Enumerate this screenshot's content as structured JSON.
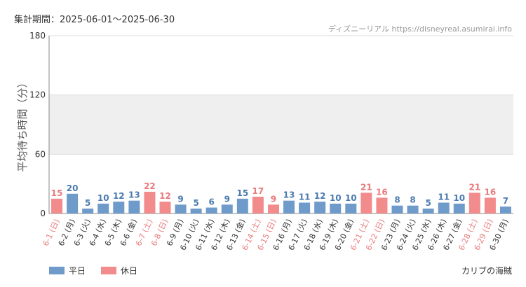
{
  "header": {
    "period_label": "集計期間：2025-06-01～2025-06-30",
    "source_label": "ディズニーリアル https://disneyreal.asumirai.info"
  },
  "footer": {
    "attraction_name": "カリブの海賊"
  },
  "colors": {
    "weekday": "#6f9bcb",
    "holiday": "#f28b8c",
    "weekday_text": "#4a7ab0",
    "holiday_text": "#e87a7c",
    "band": "#efefef",
    "grid": "#dddddd"
  },
  "chart_data": {
    "type": "bar",
    "title": "",
    "xlabel": "",
    "ylabel": "平均待ち時間（分）",
    "ylim": [
      0,
      180
    ],
    "yticks": [
      0,
      60,
      120,
      180
    ],
    "shaded_band": [
      60,
      120
    ],
    "categories": [
      "6-1 (日)",
      "6-2 (月)",
      "6-3 (火)",
      "6-4 (水)",
      "6-5 (木)",
      "6-6 (金)",
      "6-7 (土)",
      "6-8 (日)",
      "6-9 (月)",
      "6-10 (火)",
      "6-11 (水)",
      "6-12 (木)",
      "6-13 (金)",
      "6-14 (土)",
      "6-15 (日)",
      "6-16 (月)",
      "6-17 (火)",
      "6-18 (水)",
      "6-19 (木)",
      "6-20 (金)",
      "6-21 (土)",
      "6-22 (日)",
      "6-23 (月)",
      "6-24 (火)",
      "6-25 (水)",
      "6-26 (木)",
      "6-27 (金)",
      "6-28 (土)",
      "6-29 (日)",
      "6-30 (月)"
    ],
    "values": [
      15,
      20,
      5,
      10,
      12,
      13,
      22,
      12,
      9,
      5,
      6,
      9,
      15,
      17,
      9,
      13,
      11,
      12,
      10,
      10,
      21,
      16,
      8,
      8,
      5,
      11,
      10,
      21,
      16,
      7
    ],
    "day_type": [
      "holiday",
      "weekday",
      "weekday",
      "weekday",
      "weekday",
      "weekday",
      "holiday",
      "holiday",
      "weekday",
      "weekday",
      "weekday",
      "weekday",
      "weekday",
      "holiday",
      "holiday",
      "weekday",
      "weekday",
      "weekday",
      "weekday",
      "weekday",
      "holiday",
      "holiday",
      "weekday",
      "weekday",
      "weekday",
      "weekday",
      "weekday",
      "holiday",
      "holiday",
      "weekday"
    ],
    "legend": [
      {
        "name": "平日",
        "key": "weekday"
      },
      {
        "name": "休日",
        "key": "holiday"
      }
    ],
    "legend_position": "bottom-left",
    "grid": true
  }
}
